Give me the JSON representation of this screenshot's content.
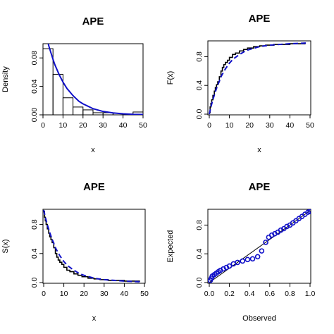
{
  "chart_data": [
    {
      "type": "bar",
      "title": "APE",
      "xlabel": "x",
      "ylabel": "Density",
      "xlim": [
        0,
        50
      ],
      "ylim": [
        0,
        0.1
      ],
      "xticks": [
        "0",
        "10",
        "20",
        "30",
        "40",
        "50"
      ],
      "yticks": [
        "0.00",
        "0.04",
        "0.08"
      ],
      "bins": [
        [
          0,
          5
        ],
        [
          5,
          10
        ],
        [
          10,
          15
        ],
        [
          15,
          20
        ],
        [
          20,
          25
        ],
        [
          25,
          30
        ],
        [
          30,
          35
        ],
        [
          35,
          40
        ],
        [
          40,
          45
        ],
        [
          45,
          50
        ]
      ],
      "values": [
        0.093,
        0.057,
        0.024,
        0.011,
        0.007,
        0.003,
        0.003,
        0.002,
        0.001,
        0.004
      ],
      "fitted_curve": {
        "x": [
          1,
          2,
          3,
          4,
          5,
          6,
          8,
          10,
          12,
          15,
          18,
          20,
          25,
          30,
          35,
          40,
          45,
          50
        ],
        "y": [
          0.119,
          0.107,
          0.096,
          0.087,
          0.078,
          0.07,
          0.057,
          0.046,
          0.037,
          0.027,
          0.019,
          0.0155,
          0.0087,
          0.0048,
          0.0027,
          0.0015,
          0.0008,
          0.0005
        ]
      },
      "colors": {
        "curve": "#1010c8",
        "bars": "#000000"
      }
    },
    {
      "type": "line",
      "title": "APE",
      "xlabel": "x",
      "ylabel": "F(x)",
      "xlim": [
        0,
        50
      ],
      "ylim": [
        0,
        1
      ],
      "xticks": [
        "0",
        "10",
        "20",
        "30",
        "40",
        "50"
      ],
      "yticks": [
        "0.0",
        "0.4",
        "0.8"
      ],
      "empirical": {
        "x": [
          0,
          0.4,
          0.8,
          1.2,
          1.8,
          2.5,
          3,
          3.6,
          4.2,
          5,
          5.8,
          6.5,
          7.2,
          8,
          9,
          10,
          11.5,
          13,
          15,
          17,
          19,
          22,
          25,
          28,
          32,
          36,
          40,
          44,
          47.5
        ],
        "y": [
          0.02,
          0.1,
          0.15,
          0.2,
          0.26,
          0.32,
          0.37,
          0.41,
          0.45,
          0.52,
          0.6,
          0.65,
          0.69,
          0.72,
          0.75,
          0.79,
          0.83,
          0.85,
          0.88,
          0.9,
          0.92,
          0.94,
          0.95,
          0.96,
          0.97,
          0.97,
          0.98,
          0.98,
          0.99
        ]
      },
      "fitted": {
        "x": [
          0,
          1,
          2,
          3,
          4,
          5,
          6,
          8,
          10,
          12,
          15,
          18,
          20,
          25,
          30,
          35,
          40,
          45,
          48
        ],
        "y": [
          0,
          0.12,
          0.22,
          0.31,
          0.39,
          0.46,
          0.53,
          0.63,
          0.71,
          0.77,
          0.83,
          0.88,
          0.9,
          0.94,
          0.96,
          0.97,
          0.98,
          0.985,
          0.99
        ]
      },
      "colors": {
        "empirical": "#000000",
        "fitted": "#1010c8"
      }
    },
    {
      "type": "line",
      "title": "APE",
      "xlabel": "x",
      "ylabel": "S(x)",
      "xlim": [
        0,
        50
      ],
      "ylim": [
        0,
        1
      ],
      "xticks": [
        "0",
        "10",
        "20",
        "30",
        "40",
        "50"
      ],
      "yticks": [
        "0.0",
        "0.4",
        "0.8"
      ],
      "empirical": {
        "x": [
          0,
          0.4,
          0.8,
          1.2,
          1.8,
          2.5,
          3,
          3.6,
          4.2,
          5,
          5.8,
          6.5,
          7.2,
          8,
          9,
          10,
          11.5,
          13,
          15,
          17,
          19,
          22,
          25,
          28,
          32,
          36,
          40,
          44,
          47.5
        ],
        "y": [
          0.98,
          0.9,
          0.85,
          0.8,
          0.74,
          0.68,
          0.63,
          0.59,
          0.55,
          0.48,
          0.4,
          0.35,
          0.31,
          0.28,
          0.25,
          0.21,
          0.17,
          0.15,
          0.12,
          0.1,
          0.08,
          0.06,
          0.05,
          0.04,
          0.03,
          0.03,
          0.02,
          0.02,
          0.01
        ]
      },
      "fitted": {
        "x": [
          0,
          1,
          2,
          3,
          4,
          5,
          6,
          8,
          10,
          12,
          15,
          18,
          20,
          25,
          30,
          35,
          40,
          45,
          48
        ],
        "y": [
          1,
          0.88,
          0.78,
          0.69,
          0.61,
          0.54,
          0.47,
          0.37,
          0.29,
          0.23,
          0.17,
          0.12,
          0.1,
          0.06,
          0.04,
          0.03,
          0.02,
          0.015,
          0.01
        ]
      },
      "colors": {
        "empirical": "#000000",
        "fitted": "#1010c8"
      }
    },
    {
      "type": "scatter",
      "title": "APE",
      "xlabel": "Observed",
      "ylabel": "Expected",
      "xlim": [
        0,
        1
      ],
      "ylim": [
        0,
        1
      ],
      "xticks": [
        "0.0",
        "0.2",
        "0.4",
        "0.6",
        "0.8",
        "1.0"
      ],
      "yticks": [
        "0.0",
        "0.4",
        "0.8"
      ],
      "points": {
        "x": [
          0.01,
          0.02,
          0.03,
          0.05,
          0.07,
          0.09,
          0.11,
          0.14,
          0.17,
          0.2,
          0.24,
          0.28,
          0.33,
          0.38,
          0.43,
          0.48,
          0.52,
          0.56,
          0.59,
          0.62,
          0.65,
          0.68,
          0.71,
          0.74,
          0.77,
          0.8,
          0.83,
          0.86,
          0.89,
          0.92,
          0.95,
          0.98,
          1.0
        ],
        "y": [
          0.03,
          0.06,
          0.09,
          0.11,
          0.13,
          0.15,
          0.17,
          0.19,
          0.21,
          0.23,
          0.26,
          0.28,
          0.3,
          0.32,
          0.33,
          0.36,
          0.44,
          0.56,
          0.63,
          0.66,
          0.68,
          0.7,
          0.73,
          0.75,
          0.78,
          0.8,
          0.83,
          0.86,
          0.89,
          0.92,
          0.95,
          0.98,
          0.99
        ]
      },
      "reference_line": {
        "x": [
          0,
          1
        ],
        "y": [
          0,
          1
        ]
      },
      "colors": {
        "points": "#1010c8",
        "line": "#000000"
      }
    }
  ]
}
